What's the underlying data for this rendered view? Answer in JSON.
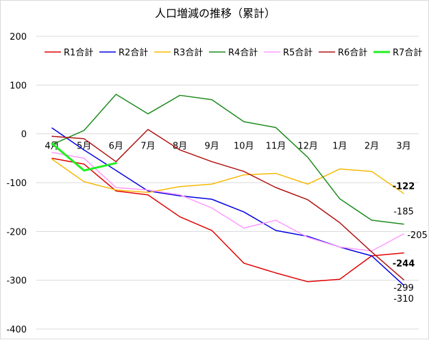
{
  "chart_data": {
    "type": "line",
    "title": "人口増減の推移（累計）",
    "xlabel": "",
    "ylabel": "",
    "categories": [
      "4月",
      "5月",
      "6月",
      "7月",
      "8月",
      "9月",
      "10月",
      "11月",
      "12月",
      "1月",
      "2月",
      "3月"
    ],
    "ylim": [
      -400,
      200
    ],
    "yticks": [
      200,
      100,
      0,
      -100,
      -200,
      -300,
      -400
    ],
    "grid": true,
    "legend": "top",
    "series": [
      {
        "name": "R1合計",
        "color": "#e00000",
        "width": 1.5,
        "values": [
          -50,
          -62,
          -117,
          -125,
          -170,
          -198,
          -265,
          -285,
          -303,
          -298,
          -250,
          -244
        ]
      },
      {
        "name": "R2合計",
        "color": "#0000e0",
        "width": 1.5,
        "values": [
          12,
          -33,
          -75,
          -117,
          -127,
          -134,
          -160,
          -198,
          -210,
          -232,
          -250,
          -310
        ]
      },
      {
        "name": "R3合計",
        "color": "#f5b800",
        "width": 1.5,
        "values": [
          -52,
          -98,
          -115,
          -120,
          -108,
          -103,
          -84,
          -81,
          -103,
          -72,
          -77,
          -122
        ]
      },
      {
        "name": "R4合計",
        "color": "#1b8a1b",
        "width": 1.5,
        "values": [
          -22,
          7,
          81,
          41,
          79,
          70,
          25,
          13,
          -48,
          -133,
          -177,
          -185
        ]
      },
      {
        "name": "R5合計",
        "color": "#ff99ff",
        "width": 1.5,
        "values": [
          -38,
          -50,
          -110,
          -115,
          -125,
          -152,
          -193,
          -177,
          -212,
          -232,
          -240,
          -205
        ]
      },
      {
        "name": "R6合計",
        "color": "#b01010",
        "width": 1.5,
        "values": [
          -5,
          -10,
          -57,
          9,
          -33,
          -57,
          -77,
          -110,
          -135,
          -182,
          -242,
          -299
        ]
      },
      {
        "name": "R7合計",
        "color": "#22ee22",
        "width": 3,
        "values": [
          -20,
          -75,
          -60,
          null,
          null,
          null,
          null,
          null,
          null,
          null,
          null,
          null
        ]
      }
    ],
    "end_labels": [
      {
        "series": "R3合計",
        "text": "-122"
      },
      {
        "series": "R4合計",
        "text": "-185"
      },
      {
        "series": "R5合計",
        "text": "-205"
      },
      {
        "series": "R1合計",
        "text": "-244"
      },
      {
        "series": "R6合計",
        "text": "-299"
      },
      {
        "series": "R2合計",
        "text": "-310"
      }
    ]
  }
}
